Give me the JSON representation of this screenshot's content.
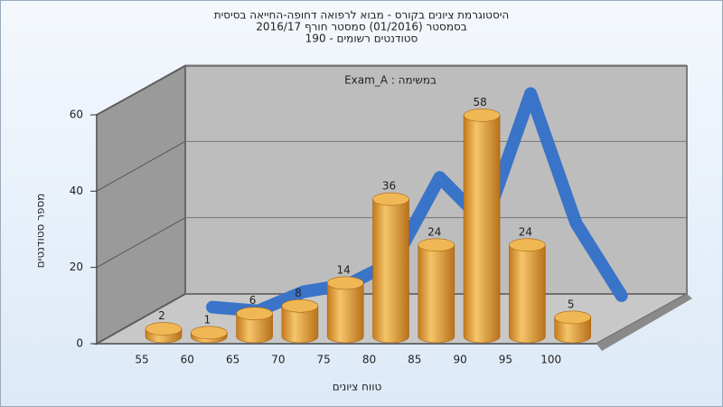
{
  "chart_data": {
    "type": "bar",
    "title": [
      "היסטוגרמת ציונים בקורס - מבוא לרפואה דחופה-החייאה בסיסית",
      "בסמסטר  (01/2016)  סמסטר חורף 2016/17",
      "סטודנטים רשומים - 190"
    ],
    "annotation": "Exam_A : במשימה",
    "x_label": "טווח ציונים",
    "y_label": "מספר סטודנטים",
    "categories": [
      "55",
      "60",
      "65",
      "70",
      "75",
      "80",
      "85",
      "90",
      "95",
      "100"
    ],
    "values": [
      2,
      1,
      6,
      8,
      14,
      36,
      24,
      58,
      24,
      5
    ],
    "color": "#e8a640",
    "line_color": "#3a74c8",
    "ylim": [
      0,
      60
    ],
    "yticks": [
      0,
      20,
      40,
      60
    ],
    "grid": true
  }
}
